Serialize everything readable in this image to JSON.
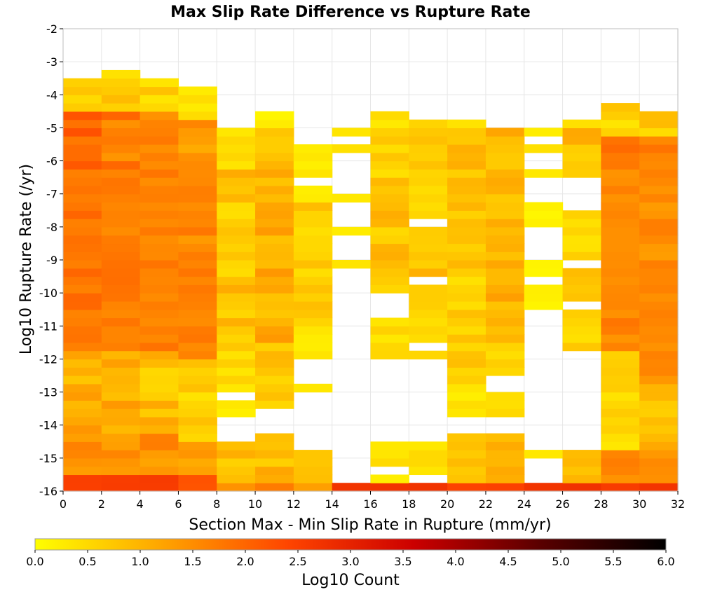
{
  "chart_data": {
    "type": "heatmap",
    "title": "Max Slip Rate Difference vs Rupture Rate",
    "xlabel": "Section Max - Min Slip Rate in Rupture (mm/yr)",
    "ylabel": "Log10 Rupture Rate (/yr)",
    "colorbar_label": "Log10 Count",
    "xlim": [
      0,
      32
    ],
    "ylim": [
      -16,
      -2
    ],
    "x_ticks": [
      "0",
      "2",
      "4",
      "6",
      "8",
      "10",
      "12",
      "14",
      "16",
      "18",
      "20",
      "22",
      "24",
      "26",
      "28",
      "30",
      "32"
    ],
    "y_ticks": [
      "-2",
      "-3",
      "-4",
      "-5",
      "-6",
      "-7",
      "-8",
      "-9",
      "-10",
      "-11",
      "-12",
      "-13",
      "-14",
      "-15",
      "-16"
    ],
    "colorbar_ticks": [
      "0.0",
      "0.5",
      "1.0",
      "1.5",
      "2.0",
      "2.5",
      "3.0",
      "3.5",
      "4.0",
      "4.5",
      "5.0",
      "5.5",
      "6.0"
    ],
    "colorbar_range": [
      0,
      6
    ],
    "colormap": [
      "#ffff00",
      "#ffa500",
      "#ff4500",
      "#cc0000",
      "#5a0000",
      "#000000"
    ],
    "grid": true,
    "x_bin_edges": [
      0,
      2,
      4,
      6,
      8,
      10,
      12,
      14,
      16,
      18,
      20,
      22,
      24,
      26,
      28,
      30,
      32
    ],
    "y_bin_width": 0.25,
    "columns": [
      {
        "x": [
          0,
          2
        ],
        "ranges": [
          {
            "y": [
              -16,
              -15.5
            ],
            "v": [
              2.4,
              2.6
            ]
          },
          {
            "y": [
              -15.5,
              -14.25
            ],
            "v": [
              1.2,
              2.1
            ]
          },
          {
            "y": [
              -14.25,
              -11.75
            ],
            "v": [
              0.7,
              1.5
            ]
          },
          {
            "y": [
              -11.75,
              -6.25
            ],
            "v": [
              1.6,
              2.0
            ]
          },
          {
            "y": [
              -6.25,
              -4.5
            ],
            "v": [
              1.7,
              2.3
            ]
          },
          {
            "y": [
              -4.5,
              -3.5
            ],
            "v": [
              0.3,
              1.1
            ]
          }
        ]
      },
      {
        "x": [
          2,
          4
        ],
        "ranges": [
          {
            "y": [
              -16,
              -15.5
            ],
            "v": [
              2.4,
              2.6
            ]
          },
          {
            "y": [
              -15.5,
              -14.25
            ],
            "v": [
              1.2,
              2.1
            ]
          },
          {
            "y": [
              -14.25,
              -11.75
            ],
            "v": [
              0.6,
              1.4
            ]
          },
          {
            "y": [
              -11.75,
              -6.25
            ],
            "v": [
              1.5,
              1.9
            ]
          },
          {
            "y": [
              -6.25,
              -4.5
            ],
            "v": [
              1.4,
              2.0
            ]
          },
          {
            "y": [
              -4.5,
              -3.25
            ],
            "v": [
              0.3,
              1.0
            ]
          }
        ]
      },
      {
        "x": [
          4,
          6
        ],
        "ranges": [
          {
            "y": [
              -16,
              -15.5
            ],
            "v": [
              2.4,
              2.6
            ]
          },
          {
            "y": [
              -15.5,
              -14.25
            ],
            "v": [
              1.2,
              1.9
            ]
          },
          {
            "y": [
              -14.25,
              -11.75
            ],
            "v": [
              0.5,
              1.3
            ]
          },
          {
            "y": [
              -11.75,
              -6.25
            ],
            "v": [
              1.5,
              1.9
            ]
          },
          {
            "y": [
              -6.25,
              -4.5
            ],
            "v": [
              1.3,
              1.8
            ]
          },
          {
            "y": [
              -4.5,
              -3.5
            ],
            "v": [
              0.3,
              0.9
            ]
          }
        ]
      },
      {
        "x": [
          6,
          8
        ],
        "ranges": [
          {
            "y": [
              -16,
              -15.5
            ],
            "v": [
              2.2,
              2.4
            ]
          },
          {
            "y": [
              -15.5,
              -14.5
            ],
            "v": [
              1.1,
              1.6
            ]
          },
          {
            "y": [
              -14.5,
              -12
            ],
            "v": [
              0.3,
              0.9
            ]
          },
          {
            "y": [
              -12,
              -6.25
            ],
            "v": [
              1.3,
              1.8
            ]
          },
          {
            "y": [
              -6.25,
              -4.75
            ],
            "v": [
              1.1,
              1.6
            ]
          },
          {
            "y": [
              -4.75,
              -3.75
            ],
            "v": [
              0.2,
              0.6
            ]
          }
        ]
      },
      {
        "x": [
          8,
          10
        ],
        "ranges": [
          {
            "y": [
              -16,
              -15.75
            ],
            "v": [
              1.4,
              1.6
            ]
          },
          {
            "y": [
              -15.75,
              -14.5
            ],
            "v": [
              0.6,
              1.1
            ]
          },
          {
            "y": [
              -13.75,
              -13.25
            ],
            "v": [
              0.2,
              0.5
            ]
          },
          {
            "y": [
              -13,
              -11.25
            ],
            "v": [
              0.2,
              0.8
            ]
          },
          {
            "y": [
              -11.25,
              -6.25
            ],
            "v": [
              0.4,
              1.2
            ]
          },
          {
            "y": [
              -6.25,
              -5
            ],
            "v": [
              0.3,
              0.9
            ]
          }
        ]
      },
      {
        "x": [
          10,
          12
        ],
        "ranges": [
          {
            "y": [
              -16,
              -15.75
            ],
            "v": [
              1.7,
              1.9
            ]
          },
          {
            "y": [
              -15.75,
              -14.25
            ],
            "v": [
              0.6,
              1.3
            ]
          },
          {
            "y": [
              -13.5,
              -11.5
            ],
            "v": [
              0.4,
              1.0
            ]
          },
          {
            "y": [
              -11.5,
              -6.25
            ],
            "v": [
              0.7,
              1.4
            ]
          },
          {
            "y": [
              -6.25,
              -5
            ],
            "v": [
              0.5,
              1.0
            ]
          },
          {
            "y": [
              -5,
              -4.5
            ],
            "v": [
              0.1,
              0.4
            ]
          }
        ]
      },
      {
        "x": [
          12,
          14
        ],
        "ranges": [
          {
            "y": [
              -16,
              -15.75
            ],
            "v": [
              1.2,
              1.4
            ]
          },
          {
            "y": [
              -15.75,
              -14.75
            ],
            "v": [
              0.6,
              0.9
            ]
          },
          {
            "y": [
              -13,
              -12.75
            ],
            "v": [
              0.2,
              0.4
            ]
          },
          {
            "y": [
              -12,
              -10.75
            ],
            "v": [
              0.2,
              0.6
            ]
          },
          {
            "y": [
              -10.75,
              -7.25
            ],
            "v": [
              0.4,
              0.9
            ]
          },
          {
            "y": [
              -7.25,
              -6.75
            ],
            "v": [
              0.1,
              0.3
            ]
          },
          {
            "y": [
              -6.5,
              -5.5
            ],
            "v": [
              0.2,
              0.5
            ]
          }
        ]
      },
      {
        "x": [
          14,
          16
        ],
        "ranges": [
          {
            "y": [
              -16,
              -15.75
            ],
            "v": [
              2.6,
              2.8
            ]
          },
          {
            "y": [
              -9.25,
              -9
            ],
            "v": [
              0.3,
              0.5
            ]
          },
          {
            "y": [
              -8.25,
              -8
            ],
            "v": [
              0.2,
              0.4
            ]
          },
          {
            "y": [
              -7.25,
              -7
            ],
            "v": [
              0.2,
              0.4
            ]
          },
          {
            "y": [
              -5.75,
              -5.5
            ],
            "v": [
              0.3,
              0.5
            ]
          },
          {
            "y": [
              -5.25,
              -5
            ],
            "v": [
              0.3,
              0.5
            ]
          }
        ]
      },
      {
        "x": [
          16,
          18
        ],
        "ranges": [
          {
            "y": [
              -16,
              -15.75
            ],
            "v": [
              2.6,
              2.8
            ]
          },
          {
            "y": [
              -15.75,
              -15.5
            ],
            "v": [
              0.1,
              0.3
            ]
          },
          {
            "y": [
              -15.25,
              -14.5
            ],
            "v": [
              0.3,
              0.7
            ]
          },
          {
            "y": [
              -12,
              -10.75
            ],
            "v": [
              0.3,
              0.8
            ]
          },
          {
            "y": [
              -10,
              -7.5
            ],
            "v": [
              0.5,
              1.1
            ]
          },
          {
            "y": [
              -7.5,
              -5
            ],
            "v": [
              0.4,
              1.0
            ]
          },
          {
            "y": [
              -5,
              -4.5
            ],
            "v": [
              0.2,
              0.5
            ]
          }
        ]
      },
      {
        "x": [
          18,
          20
        ],
        "ranges": [
          {
            "y": [
              -16,
              -15.75
            ],
            "v": [
              2.6,
              2.8
            ]
          },
          {
            "y": [
              -15.5,
              -14.5
            ],
            "v": [
              0.3,
              0.6
            ]
          },
          {
            "y": [
              -12,
              -11.75
            ],
            "v": [
              0.5,
              0.7
            ]
          },
          {
            "y": [
              -11.5,
              -9.75
            ],
            "v": [
              0.4,
              0.9
            ]
          },
          {
            "y": [
              -9.5,
              -8
            ],
            "v": [
              0.6,
              1.1
            ]
          },
          {
            "y": [
              -7.75,
              -4.75
            ],
            "v": [
              0.4,
              0.9
            ]
          }
        ]
      },
      {
        "x": [
          20,
          22
        ],
        "ranges": [
          {
            "y": [
              -16,
              -15.75
            ],
            "v": [
              2.3,
              2.5
            ]
          },
          {
            "y": [
              -15.75,
              -14.25
            ],
            "v": [
              0.6,
              1.0
            ]
          },
          {
            "y": [
              -13.75,
              -12.75
            ],
            "v": [
              0.2,
              0.5
            ]
          },
          {
            "y": [
              -12.75,
              -9.25
            ],
            "v": [
              0.4,
              1.0
            ]
          },
          {
            "y": [
              -9.25,
              -5
            ],
            "v": [
              0.6,
              1.1
            ]
          },
          {
            "y": [
              -5,
              -4.75
            ],
            "v": [
              0.3,
              0.5
            ]
          }
        ]
      },
      {
        "x": [
          22,
          24
        ],
        "ranges": [
          {
            "y": [
              -16,
              -15.75
            ],
            "v": [
              2.3,
              2.5
            ]
          },
          {
            "y": [
              -15.75,
              -14.25
            ],
            "v": [
              0.8,
              1.2
            ]
          },
          {
            "y": [
              -13.75,
              -13
            ],
            "v": [
              0.2,
              0.6
            ]
          },
          {
            "y": [
              -12.5,
              -11.5
            ],
            "v": [
              0.4,
              0.8
            ]
          },
          {
            "y": [
              -11.5,
              -9.25
            ],
            "v": [
              0.8,
              1.3
            ]
          },
          {
            "y": [
              -9.25,
              -5
            ],
            "v": [
              0.7,
              1.2
            ]
          }
        ]
      },
      {
        "x": [
          24,
          26
        ],
        "ranges": [
          {
            "y": [
              -16,
              -15.75
            ],
            "v": [
              2.7,
              2.9
            ]
          },
          {
            "y": [
              -15,
              -14.75
            ],
            "v": [
              0.3,
              0.5
            ]
          },
          {
            "y": [
              -10.5,
              -9.75
            ],
            "v": [
              0.1,
              0.3
            ]
          },
          {
            "y": [
              -9.5,
              -9
            ],
            "v": [
              0.1,
              0.3
            ]
          },
          {
            "y": [
              -8,
              -7.25
            ],
            "v": [
              0.1,
              0.3
            ]
          },
          {
            "y": [
              -6.5,
              -6.25
            ],
            "v": [
              0.3,
              0.5
            ]
          },
          {
            "y": [
              -5.75,
              -5.5
            ],
            "v": [
              0.3,
              0.5
            ]
          },
          {
            "y": [
              -5.25,
              -5
            ],
            "v": [
              0.1,
              0.3
            ]
          }
        ]
      },
      {
        "x": [
          26,
          28
        ],
        "ranges": [
          {
            "y": [
              -16,
              -15.75
            ],
            "v": [
              2.6,
              2.8
            ]
          },
          {
            "y": [
              -15.75,
              -14.75
            ],
            "v": [
              0.7,
              1.0
            ]
          },
          {
            "y": [
              -11.75,
              -10.5
            ],
            "v": [
              0.4,
              0.9
            ]
          },
          {
            "y": [
              -10.25,
              -9.25
            ],
            "v": [
              0.5,
              0.9
            ]
          },
          {
            "y": [
              -9,
              -7.5
            ],
            "v": [
              0.3,
              0.7
            ]
          },
          {
            "y": [
              -6.5,
              -4.75
            ],
            "v": [
              0.4,
              1.2
            ]
          }
        ]
      },
      {
        "x": [
          28,
          30
        ],
        "ranges": [
          {
            "y": [
              -16,
              -15.75
            ],
            "v": [
              2.5,
              2.7
            ]
          },
          {
            "y": [
              -15.75,
              -14.75
            ],
            "v": [
              1.3,
              1.7
            ]
          },
          {
            "y": [
              -14.75,
              -11.75
            ],
            "v": [
              0.2,
              0.8
            ]
          },
          {
            "y": [
              -11.75,
              -6.25
            ],
            "v": [
              1.4,
              1.8
            ]
          },
          {
            "y": [
              -6.25,
              -5.25
            ],
            "v": [
              1.7,
              2.1
            ]
          },
          {
            "y": [
              -5.25,
              -4.25
            ],
            "v": [
              0.3,
              0.9
            ]
          }
        ]
      },
      {
        "x": [
          30,
          32
        ],
        "ranges": [
          {
            "y": [
              -16,
              -15.75
            ],
            "v": [
              2.5,
              2.7
            ]
          },
          {
            "y": [
              -15.75,
              -14.75
            ],
            "v": [
              1.3,
              1.7
            ]
          },
          {
            "y": [
              -14.75,
              -12.75
            ],
            "v": [
              0.6,
              1.2
            ]
          },
          {
            "y": [
              -12.75,
              -6.25
            ],
            "v": [
              1.3,
              1.7
            ]
          },
          {
            "y": [
              -6.25,
              -5.25
            ],
            "v": [
              1.5,
              1.9
            ]
          },
          {
            "y": [
              -5.25,
              -4.5
            ],
            "v": [
              0.4,
              1.0
            ]
          }
        ]
      }
    ]
  }
}
